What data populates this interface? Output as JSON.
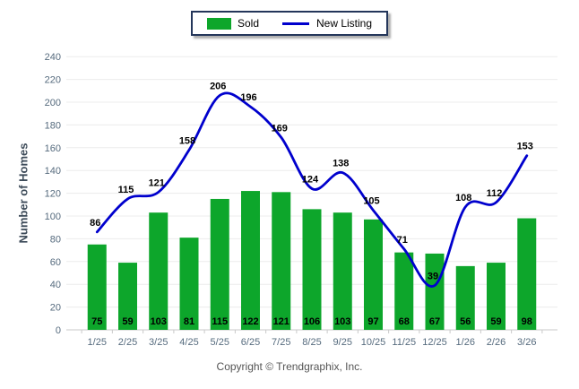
{
  "legend": {
    "sold_label": "Sold",
    "new_listing_label": "New Listing"
  },
  "chart_data": {
    "type": "bar",
    "categories": [
      "1/25",
      "2/25",
      "3/25",
      "4/25",
      "5/25",
      "6/25",
      "7/25",
      "8/25",
      "9/25",
      "10/25",
      "11/25",
      "12/25",
      "1/26",
      "2/26",
      "3/26"
    ],
    "series": [
      {
        "name": "Sold",
        "type": "bar",
        "color": "#0da62b",
        "values": [
          75,
          59,
          103,
          81,
          115,
          122,
          121,
          106,
          103,
          97,
          68,
          67,
          56,
          59,
          98
        ]
      },
      {
        "name": "New Listing",
        "type": "line",
        "color": "#0000cd",
        "values": [
          86,
          115,
          121,
          158,
          206,
          196,
          169,
          124,
          138,
          105,
          71,
          39,
          108,
          112,
          153
        ]
      }
    ],
    "title": "",
    "xlabel": "",
    "ylabel": "Number of Homes",
    "ylim": [
      0,
      240
    ],
    "ytick_step": 20,
    "grid": true,
    "legend_position": "top-center",
    "colors": {
      "bar_fill": "#0da62b",
      "line_stroke": "#0000cd",
      "gridline": "#ececec",
      "axis": "#c9c9c9",
      "tick_text": "#566b7e",
      "value_text": "#000000"
    }
  },
  "footer": {
    "copyright": "Copyright © Trendgraphix, Inc."
  }
}
